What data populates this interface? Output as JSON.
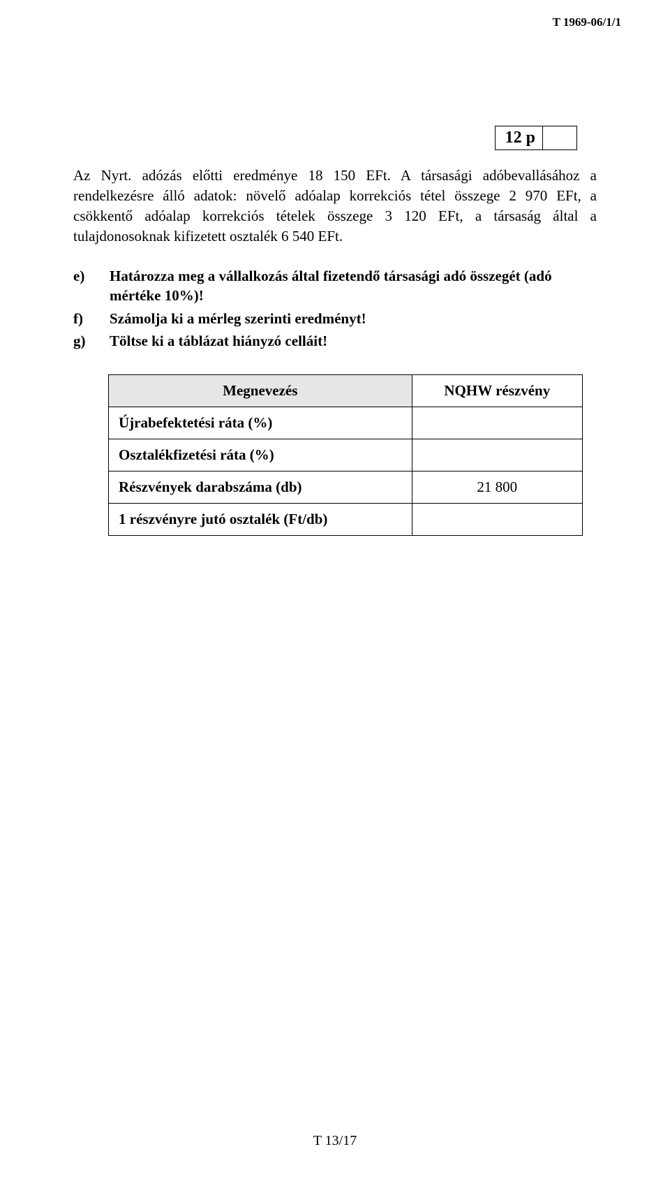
{
  "header_id": "T 1969-06/1/1",
  "points_box": "12 p",
  "intro_text": "Az Nyrt. adózás előtti eredménye 18 150 EFt. A társasági adóbevallásához a rendelkezésre álló adatok: növelő adóalap korrekciós tétel összege 2 970 EFt, a csökkentő adóalap korrekciós tételek összege 3 120 EFt, a társaság által a tulajdonosoknak kifizetett osztalék 6 540 EFt.",
  "items": {
    "e": {
      "letter": "e)",
      "text": "Határozza meg a vállalkozás által fizetendő társasági adó összegét (adó mértéke 10%)!"
    },
    "f": {
      "letter": "f)",
      "text": "Számolja ki a mérleg szerinti eredményt!"
    },
    "g": {
      "letter": "g)",
      "text": "Töltse ki a táblázat hiányzó celláit!"
    }
  },
  "table": {
    "header_name": "Megnevezés",
    "header_value": "NQHW részvény",
    "rows": [
      {
        "label": "Újrabefektetési ráta (%)",
        "value": ""
      },
      {
        "label": "Osztalékfizetési ráta (%)",
        "value": ""
      },
      {
        "label": "Részvények darabszáma (db)",
        "value": "21 800"
      },
      {
        "label": "1 részvényre jutó osztalék (Ft/db)",
        "value": ""
      }
    ]
  },
  "footer": "T 13/17"
}
